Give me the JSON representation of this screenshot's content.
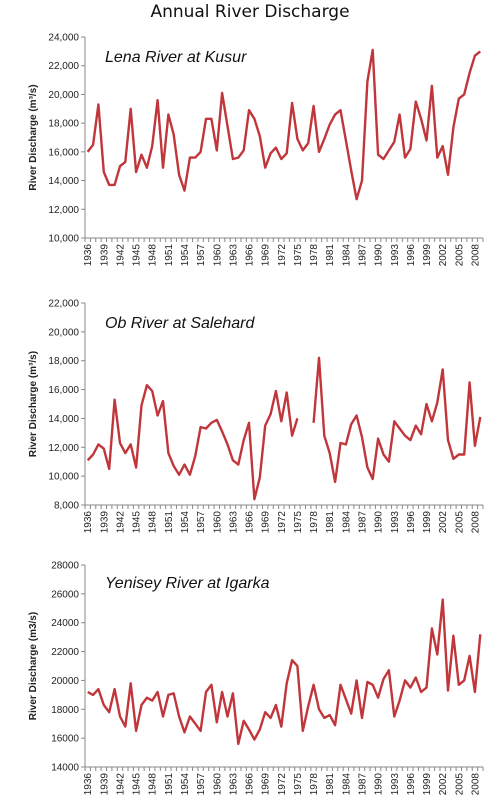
{
  "title": "Annual River Discharge",
  "chart_data": [
    {
      "type": "line",
      "title": "Lena River at Kusur",
      "ylabel": "River Discharge",
      "yunit": "(m³/s)",
      "ylim": [
        10000,
        24000
      ],
      "yticks": [
        "10,000",
        "12,000",
        "14,000",
        "16,000",
        "18,000",
        "20,000",
        "22,000",
        "24,000"
      ],
      "xticks": [
        "1936",
        "1939",
        "1942",
        "1945",
        "1948",
        "1951",
        "1954",
        "1957",
        "1960",
        "1963",
        "1966",
        "1969",
        "1972",
        "1975",
        "1978",
        "1981",
        "1984",
        "1987",
        "1990",
        "1993",
        "1996",
        "1999",
        "2002",
        "2005",
        "2008"
      ],
      "color": "#c0363a",
      "grid": false,
      "x_start": 1936,
      "values": [
        16000,
        16500,
        19300,
        14600,
        13700,
        13700,
        15000,
        15300,
        19000,
        14600,
        15800,
        14900,
        16400,
        19600,
        14900,
        18600,
        17200,
        14400,
        13300,
        15600,
        15600,
        16000,
        18300,
        18300,
        16100,
        20100,
        17800,
        15500,
        15600,
        16100,
        18900,
        18300,
        17100,
        14900,
        15900,
        16300,
        15500,
        15900,
        19400,
        16900,
        16100,
        16600,
        19200,
        16000,
        16900,
        17900,
        18600,
        18900,
        16800,
        14700,
        12700,
        14000,
        20900,
        23100,
        15800,
        15500,
        16100,
        16700,
        18600,
        15600,
        16200,
        19500,
        18300,
        16800,
        20600,
        15600,
        16400,
        14400,
        17700,
        19700,
        20000,
        21500,
        22700,
        23000
      ],
      "series_label": "Lena River at Kusur"
    },
    {
      "type": "line",
      "title": "Ob River at Salehard",
      "ylabel": "River Discharge",
      "yunit": "(m³/s)",
      "ylim": [
        8000,
        22000
      ],
      "yticks": [
        "8,000",
        "10,000",
        "12,000",
        "14,000",
        "16,000",
        "18,000",
        "20,000",
        "22,000"
      ],
      "xticks": [
        "1936",
        "1939",
        "1942",
        "1945",
        "1948",
        "1951",
        "1954",
        "1957",
        "1960",
        "1963",
        "1966",
        "1969",
        "1972",
        "1975",
        "1978",
        "1981",
        "1984",
        "1987",
        "1990",
        "1993",
        "1996",
        "1999",
        "2002",
        "2005",
        "2008"
      ],
      "color": "#c0363a",
      "grid": false,
      "x_start": 1936,
      "values": [
        11100,
        11500,
        12200,
        11900,
        10500,
        15300,
        12300,
        11600,
        12200,
        10600,
        14900,
        16300,
        15900,
        14200,
        15200,
        11600,
        10700,
        10100,
        10800,
        10100,
        11400,
        13400,
        13300,
        13700,
        13900,
        13100,
        12200,
        11100,
        10800,
        12500,
        13700,
        8400,
        9900,
        13500,
        14300,
        15900,
        13800,
        15800,
        12800,
        14000,
        null,
        null,
        13700,
        18200,
        12800,
        11600,
        9600,
        12300,
        12200,
        13600,
        14200,
        12700,
        10600,
        9800,
        12600,
        11500,
        11000,
        13800,
        13300,
        12800,
        12500,
        13500,
        12900,
        15000,
        13800,
        15100,
        17400,
        12500,
        11200,
        11500,
        11500,
        16500,
        12100,
        14100
      ],
      "series_label": "Ob River at Salehard"
    },
    {
      "type": "line",
      "title": "Yenisey  River at Igarka",
      "ylabel": "River Discharge",
      "yunit": "(m3/s)",
      "ylim": [
        14000,
        28000
      ],
      "yticks": [
        "14000",
        "16000",
        "18000",
        "20000",
        "22000",
        "24000",
        "26000",
        "28000"
      ],
      "xticks": [
        "1936",
        "1939",
        "1942",
        "1945",
        "1948",
        "1951",
        "1954",
        "1957",
        "1960",
        "1963",
        "1966",
        "1969",
        "1972",
        "1975",
        "1978",
        "1981",
        "1984",
        "1987",
        "1990",
        "1993",
        "1996",
        "1999",
        "2002",
        "2005",
        "2008"
      ],
      "color": "#c0363a",
      "grid": false,
      "x_start": 1936,
      "values": [
        19200,
        19000,
        19400,
        18300,
        17800,
        19400,
        17500,
        16800,
        19800,
        16500,
        18300,
        18800,
        18600,
        19200,
        17500,
        19000,
        19100,
        17500,
        16400,
        17500,
        17000,
        16500,
        19200,
        19700,
        17100,
        19200,
        17500,
        19100,
        15600,
        17200,
        16600,
        15900,
        16600,
        17800,
        17400,
        18300,
        16800,
        19800,
        21400,
        21000,
        16500,
        18200,
        19700,
        18000,
        17400,
        17600,
        16900,
        19700,
        18700,
        17700,
        20000,
        17400,
        19900,
        19700,
        18800,
        20100,
        20700,
        17500,
        18600,
        20000,
        19500,
        20200,
        19200,
        19500,
        23600,
        21800,
        25600,
        19300,
        23100,
        19700,
        20000,
        21700,
        19200,
        23200
      ],
      "series_label": "Yenisey  River at Igarka"
    }
  ]
}
